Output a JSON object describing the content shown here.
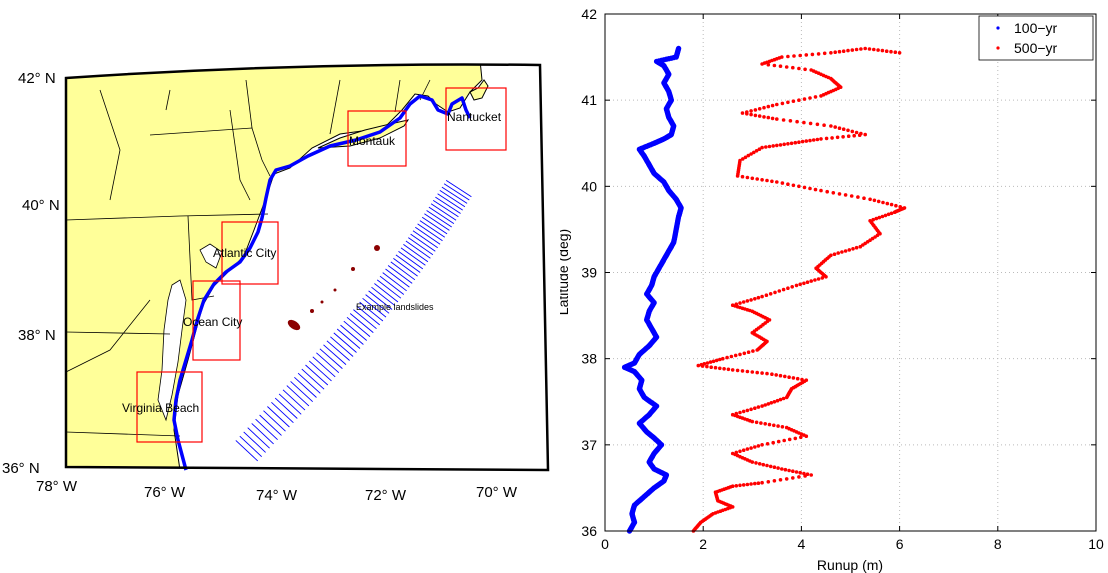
{
  "map": {
    "lat_labels": [
      "42° N",
      "40° N",
      "38° N",
      "36° N"
    ],
    "lon_labels": [
      "78° W",
      "76° W",
      "74° W",
      "72° W",
      "70° W"
    ],
    "boxes": [
      "Nantucket",
      "Montauk",
      "Atlantic City",
      "Ocean City",
      "Virginia Beach"
    ],
    "annotation": "Example landslides",
    "colors": {
      "land": "#ffff99",
      "coastline": "#0000ff",
      "box": "#ff0000",
      "transects": "#0000ff",
      "landslides": "#8b0000"
    }
  },
  "chart_data": {
    "type": "scatter",
    "xlabel": "Runup (m)",
    "ylabel": "Latitude (deg)",
    "xlim": [
      0,
      10
    ],
    "ylim": [
      36,
      42
    ],
    "xticks": [
      "0",
      "2",
      "4",
      "6",
      "8",
      "10"
    ],
    "yticks": [
      "36",
      "37",
      "38",
      "39",
      "40",
      "41",
      "42"
    ],
    "grid": true,
    "legend_position": "top-right",
    "series": [
      {
        "name": "100−yr",
        "color": "#0000ff",
        "points": [
          [
            0.5,
            36.0
          ],
          [
            0.6,
            36.1
          ],
          [
            0.55,
            36.2
          ],
          [
            0.6,
            36.3
          ],
          [
            0.8,
            36.4
          ],
          [
            1.0,
            36.5
          ],
          [
            1.2,
            36.58
          ],
          [
            1.25,
            36.65
          ],
          [
            1.0,
            36.72
          ],
          [
            0.9,
            36.8
          ],
          [
            1.0,
            36.9
          ],
          [
            1.15,
            37.0
          ],
          [
            1.0,
            37.08
          ],
          [
            0.85,
            37.15
          ],
          [
            0.7,
            37.25
          ],
          [
            0.9,
            37.35
          ],
          [
            1.05,
            37.45
          ],
          [
            0.8,
            37.55
          ],
          [
            0.7,
            37.65
          ],
          [
            0.75,
            37.75
          ],
          [
            0.6,
            37.85
          ],
          [
            0.4,
            37.9
          ],
          [
            0.6,
            37.95
          ],
          [
            0.7,
            38.05
          ],
          [
            0.9,
            38.15
          ],
          [
            1.05,
            38.25
          ],
          [
            0.95,
            38.35
          ],
          [
            0.85,
            38.45
          ],
          [
            0.9,
            38.55
          ],
          [
            1.0,
            38.65
          ],
          [
            0.85,
            38.75
          ],
          [
            0.95,
            38.85
          ],
          [
            1.0,
            38.95
          ],
          [
            1.1,
            39.05
          ],
          [
            1.2,
            39.15
          ],
          [
            1.3,
            39.25
          ],
          [
            1.4,
            39.35
          ],
          [
            1.45,
            39.5
          ],
          [
            1.5,
            39.65
          ],
          [
            1.55,
            39.75
          ],
          [
            1.45,
            39.85
          ],
          [
            1.3,
            39.95
          ],
          [
            1.2,
            40.05
          ],
          [
            1.0,
            40.15
          ],
          [
            0.9,
            40.25
          ],
          [
            0.8,
            40.35
          ],
          [
            0.7,
            40.43
          ],
          [
            1.0,
            40.5
          ],
          [
            1.2,
            40.55
          ],
          [
            1.35,
            40.6
          ],
          [
            1.4,
            40.7
          ],
          [
            1.3,
            40.8
          ],
          [
            1.25,
            40.9
          ],
          [
            1.35,
            41.0
          ],
          [
            1.3,
            41.1
          ],
          [
            1.2,
            41.2
          ],
          [
            1.3,
            41.3
          ],
          [
            1.2,
            41.4
          ],
          [
            1.05,
            41.45
          ],
          [
            1.45,
            41.5
          ],
          [
            1.5,
            41.6
          ]
        ]
      },
      {
        "name": "500−yr",
        "color": "#ff0000",
        "points": [
          [
            1.8,
            36.0
          ],
          [
            1.95,
            36.1
          ],
          [
            2.2,
            36.2
          ],
          [
            2.6,
            36.28
          ],
          [
            2.3,
            36.35
          ],
          [
            2.25,
            36.45
          ],
          [
            2.6,
            36.52
          ],
          [
            3.2,
            36.56
          ],
          [
            4.2,
            36.65
          ],
          [
            3.6,
            36.72
          ],
          [
            3.0,
            36.8
          ],
          [
            2.6,
            36.9
          ],
          [
            3.2,
            37.0
          ],
          [
            4.1,
            37.1
          ],
          [
            3.7,
            37.2
          ],
          [
            3.0,
            37.27
          ],
          [
            2.6,
            37.35
          ],
          [
            3.2,
            37.45
          ],
          [
            3.7,
            37.55
          ],
          [
            3.8,
            37.65
          ],
          [
            4.1,
            37.75
          ],
          [
            3.4,
            37.82
          ],
          [
            2.6,
            37.87
          ],
          [
            1.9,
            37.92
          ],
          [
            2.4,
            38.0
          ],
          [
            3.1,
            38.1
          ],
          [
            3.3,
            38.2
          ],
          [
            3.0,
            38.3
          ],
          [
            3.35,
            38.45
          ],
          [
            3.0,
            38.55
          ],
          [
            2.6,
            38.62
          ],
          [
            3.2,
            38.72
          ],
          [
            3.9,
            38.85
          ],
          [
            4.5,
            38.95
          ],
          [
            4.3,
            39.05
          ],
          [
            4.6,
            39.2
          ],
          [
            5.2,
            39.3
          ],
          [
            5.6,
            39.45
          ],
          [
            5.4,
            39.6
          ],
          [
            5.9,
            39.7
          ],
          [
            6.1,
            39.75
          ],
          [
            5.4,
            39.85
          ],
          [
            4.4,
            39.95
          ],
          [
            3.5,
            40.05
          ],
          [
            2.7,
            40.12
          ],
          [
            2.75,
            40.3
          ],
          [
            3.2,
            40.45
          ],
          [
            3.8,
            40.5
          ],
          [
            4.4,
            40.55
          ],
          [
            5.3,
            40.6
          ],
          [
            4.6,
            40.7
          ],
          [
            3.5,
            40.78
          ],
          [
            2.8,
            40.85
          ],
          [
            3.5,
            40.95
          ],
          [
            4.4,
            41.05
          ],
          [
            4.8,
            41.15
          ],
          [
            4.6,
            41.25
          ],
          [
            4.2,
            41.35
          ],
          [
            3.2,
            41.42
          ],
          [
            3.6,
            41.5
          ],
          [
            4.6,
            41.55
          ],
          [
            5.3,
            41.6
          ],
          [
            6.0,
            41.55
          ]
        ]
      }
    ]
  }
}
